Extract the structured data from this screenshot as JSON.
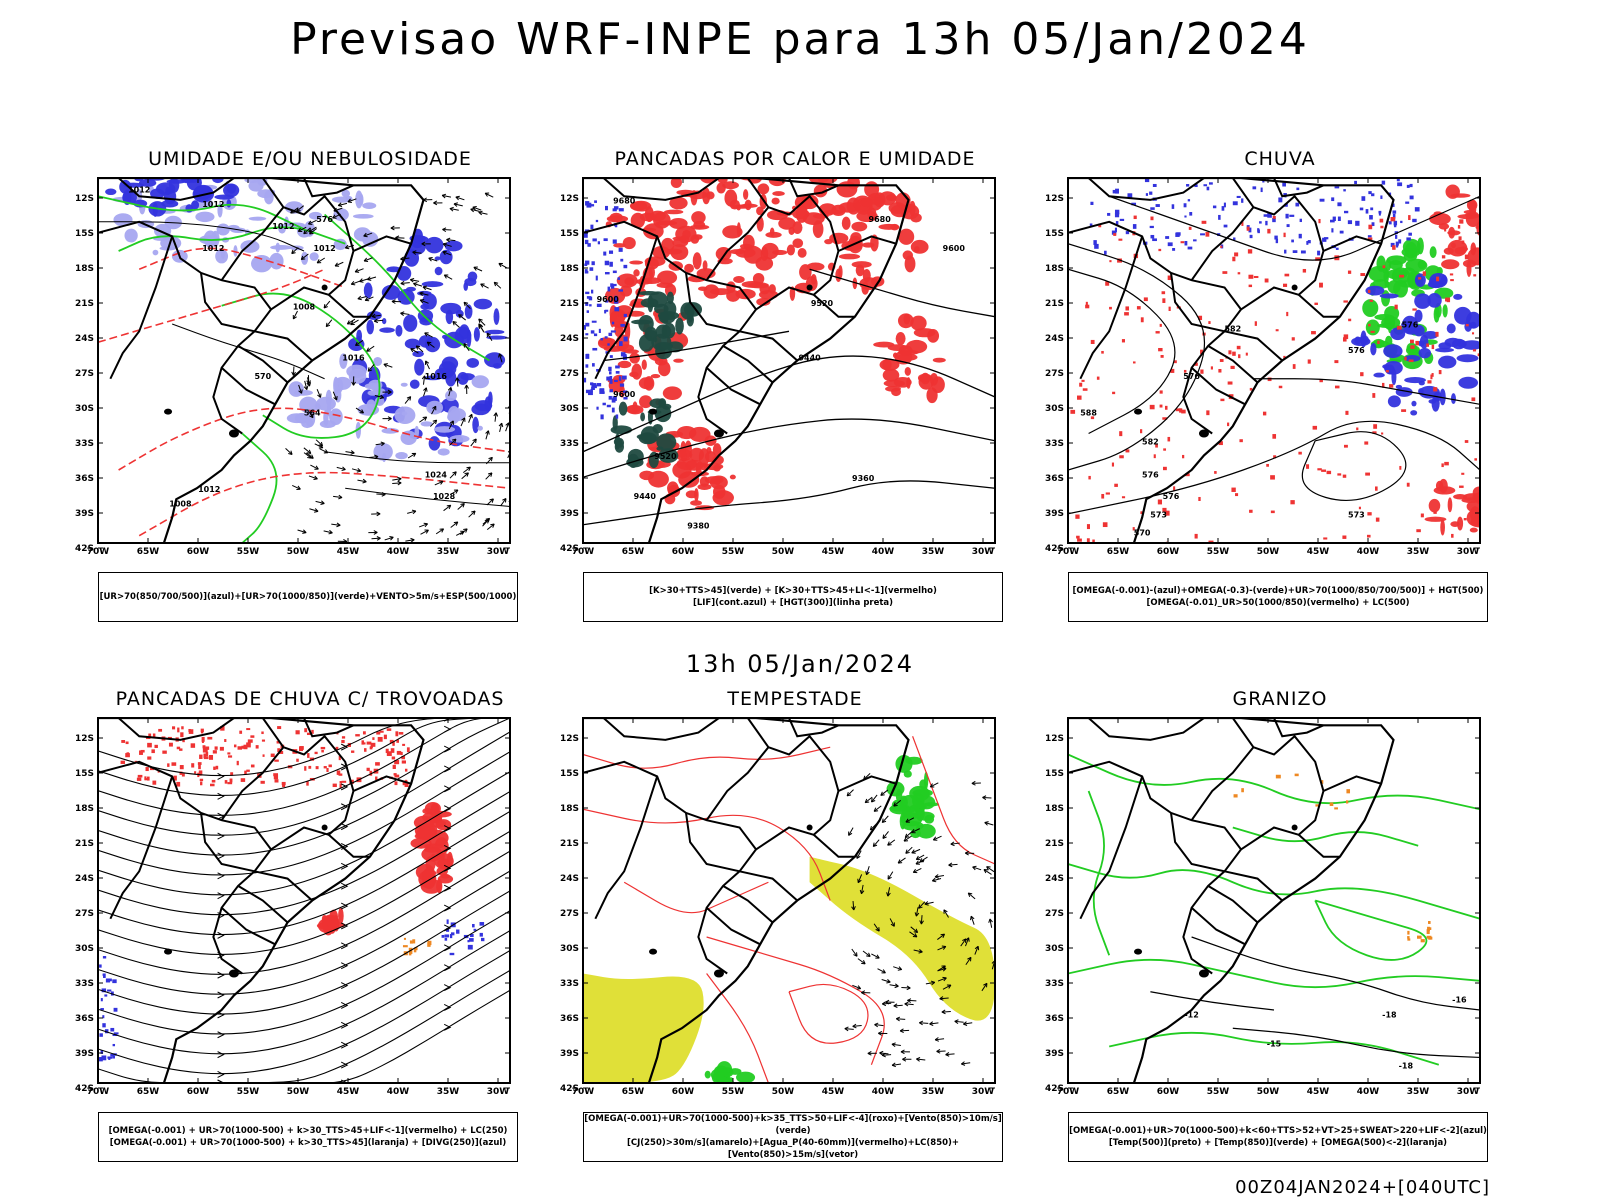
{
  "title": "Previsao WRF-INPE  para 13h 05/Jan/2024",
  "mid_title": "13h 05/Jan/2024",
  "footer": "00Z04JAN2024+[040UTC]",
  "lat_labels": [
    "12S",
    "15S",
    "18S",
    "21S",
    "24S",
    "27S",
    "30S",
    "33S",
    "36S",
    "39S",
    "42S"
  ],
  "lon_labels": [
    "70W",
    "65W",
    "60W",
    "55W",
    "50W",
    "45W",
    "40W",
    "35W",
    "30W"
  ],
  "panels": [
    {
      "title": "UMIDADE E/OU NEBULOSIDADE",
      "legend": [
        "[UR>70(850/700/500)](azul)+[UR>70(1000/850)](verde)+VENTO>5m/s+ESP(500/1000)"
      ],
      "contour_labels": [
        "1012",
        "1012",
        "1012",
        "1012",
        "1012",
        "1008",
        "1016",
        "1016",
        "1024",
        "1028",
        "1012",
        "1008",
        "576",
        "570",
        "564"
      ]
    },
    {
      "title": "PANCADAS POR CALOR E UMIDADE",
      "legend": [
        "[K>30+TTS>45](verde) + [K>30+TTS>45+LI<-1](vermelho)",
        "[LIF](cont.azul) + [HGT(300)](linha preta)"
      ],
      "contour_labels": [
        "9680",
        "9680",
        "9600",
        "9600",
        "9520",
        "9440",
        "9520",
        "9440",
        "9360",
        "9380",
        "9600"
      ]
    },
    {
      "title": "CHUVA",
      "legend": [
        "[OMEGA(-0.001)-(azul)+OMEGA(-0.3)-(verde)+UR>70(1000/850/700/500)] + HGT(500)",
        "[OMEGA(-0.01)_UR>50(1000/850)(vermelho) + LC(500)"
      ],
      "contour_labels": [
        "582",
        "576",
        "576",
        "588",
        "582",
        "576",
        "576",
        "573",
        "570",
        "573",
        "576"
      ]
    },
    {
      "title": "PANCADAS DE CHUVA C/ TROVOADAS",
      "legend": [
        "[OMEGA(-0.001) + UR>70(1000-500) + k>30_TTS>45+LIF<-1](vermelho) + LC(250)",
        "[OMEGA(-0.001) + UR>70(1000-500) + k>30_TTS>45](laranja) + [DIVG(250)](azul)"
      ],
      "contour_labels": []
    },
    {
      "title": "TEMPESTADE",
      "legend": [
        "[OMEGA(-0.001)+UR>70(1000-500)+k>35_TTS>50+LIF<-4](roxo)+[Vento(850)>10m/s](verde)",
        "[CJ(250)>30m/s](amarelo)+[Agua_P(40-60mm)](vermelho)+LC(850)+[Vento(850)>15m/s](vetor)"
      ],
      "contour_labels": []
    },
    {
      "title": "GRANIZO",
      "legend": [
        "[OMEGA(-0.001)+UR>70(1000-500)+k<60+TTS>52+VT>25+SWEAT>220+LIF<-2](azul)",
        "[Temp(500)](preto) + [Temp(850)](verde) + [OMEGA(500)<-2](laranja)"
      ],
      "contour_labels": [
        "-12",
        "-15",
        "-18",
        "-16",
        "-18"
      ]
    }
  ],
  "colors": {
    "blue": "#3333dd",
    "light_blue": "#a6a6f0",
    "green": "#22cc22",
    "red": "#ee3333",
    "dark_green": "#1f4a40",
    "yellow": "#dddd22",
    "orange": "#ee8822",
    "black": "#000000"
  }
}
